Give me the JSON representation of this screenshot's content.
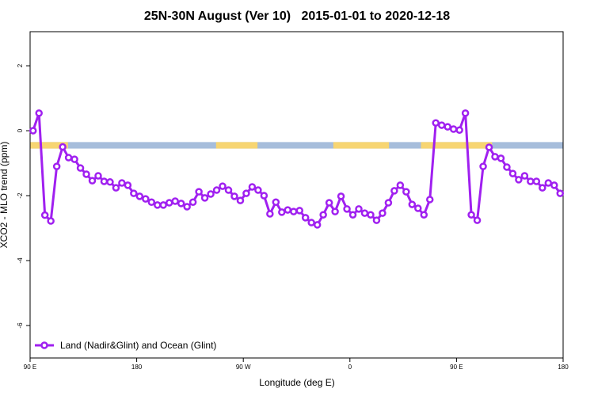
{
  "chart_data": {
    "type": "line",
    "title": "25N-30N August (Ver 10)   2015-01-01 to 2020-12-18",
    "x_label": "Longitude (deg E)",
    "y_label": "XCO2 - MLO trend (ppm)",
    "xlim": [
      90,
      540
    ],
    "ylim": [
      -7,
      3.05
    ],
    "xticks": [
      {
        "value": 90,
        "label": "90 E"
      },
      180,
      {
        "value": 270,
        "label": "90 W"
      },
      {
        "value": 360,
        "label": "0"
      },
      {
        "value": 450,
        "label": "90 E"
      },
      {
        "value": 540,
        "label": "180"
      }
    ],
    "yticks": [
      2,
      0,
      -2,
      -4,
      -6
    ],
    "legend": "bottom-left",
    "band": {
      "ylim": [
        -0.55,
        -0.35
      ],
      "ocean_color": "#a6bddb",
      "land_color": "#f7d572",
      "land": [
        [
          90,
          122
        ],
        [
          247,
          282
        ],
        [
          346,
          393
        ],
        [
          420,
          480
        ]
      ]
    },
    "x": [
      92.5,
      97.5,
      102.5,
      107.5,
      112.5,
      117.5,
      122.5,
      127.5,
      132.5,
      137.5,
      142.5,
      147.5,
      152.5,
      157.5,
      162.5,
      167.5,
      172.5,
      177.5,
      182.5,
      187.5,
      192.5,
      197.5,
      202.5,
      207.5,
      212.5,
      217.5,
      222.5,
      227.5,
      232.5,
      237.5,
      242.5,
      247.5,
      252.5,
      257.5,
      262.5,
      267.5,
      272.5,
      277.5,
      282.5,
      287.5,
      292.5,
      297.5,
      302.5,
      307.5,
      312.5,
      317.5,
      322.5,
      327.5,
      332.5,
      337.5,
      342.5,
      347.5,
      352.5,
      357.5,
      362.5,
      367.5,
      372.5,
      377.5,
      382.5,
      387.5,
      392.5,
      397.5,
      402.5,
      407.5,
      412.5,
      417.5,
      422.5,
      427.5,
      432.5,
      437.5,
      442.5,
      447.5,
      452.5,
      457.5,
      462.5,
      467.5,
      472.5,
      477.5,
      482.5,
      487.5,
      492.5,
      497.5,
      502.5,
      507.5,
      512.5,
      517.5,
      522.5,
      527.5,
      532.5,
      537.5
    ],
    "series": [
      {
        "name": "Land (Nadir&Glint) and Ocean (Glint)",
        "color": "#a020f0",
        "values": [
          0.0,
          0.54,
          -2.6,
          -2.78,
          -1.1,
          -0.5,
          -0.83,
          -0.88,
          -1.15,
          -1.34,
          -1.54,
          -1.39,
          -1.56,
          -1.58,
          -1.76,
          -1.61,
          -1.68,
          -1.93,
          -2.02,
          -2.1,
          -2.2,
          -2.29,
          -2.29,
          -2.22,
          -2.17,
          -2.24,
          -2.34,
          -2.2,
          -1.88,
          -2.07,
          -1.95,
          -1.83,
          -1.71,
          -1.83,
          -2.02,
          -2.15,
          -1.93,
          -1.73,
          -1.83,
          -2.0,
          -2.56,
          -2.2,
          -2.51,
          -2.44,
          -2.49,
          -2.46,
          -2.68,
          -2.83,
          -2.9,
          -2.59,
          -2.22,
          -2.49,
          -2.02,
          -2.41,
          -2.59,
          -2.41,
          -2.54,
          -2.59,
          -2.76,
          -2.54,
          -2.22,
          -1.85,
          -1.68,
          -1.88,
          -2.27,
          -2.39,
          -2.59,
          -2.12,
          0.24,
          0.17,
          0.12,
          0.05,
          0.02,
          0.54,
          -2.59,
          -2.76,
          -1.1,
          -0.51,
          -0.8,
          -0.85,
          -1.12,
          -1.32,
          -1.51,
          -1.39,
          -1.56,
          -1.56,
          -1.76,
          -1.61,
          -1.68,
          -1.93
        ]
      }
    ]
  }
}
